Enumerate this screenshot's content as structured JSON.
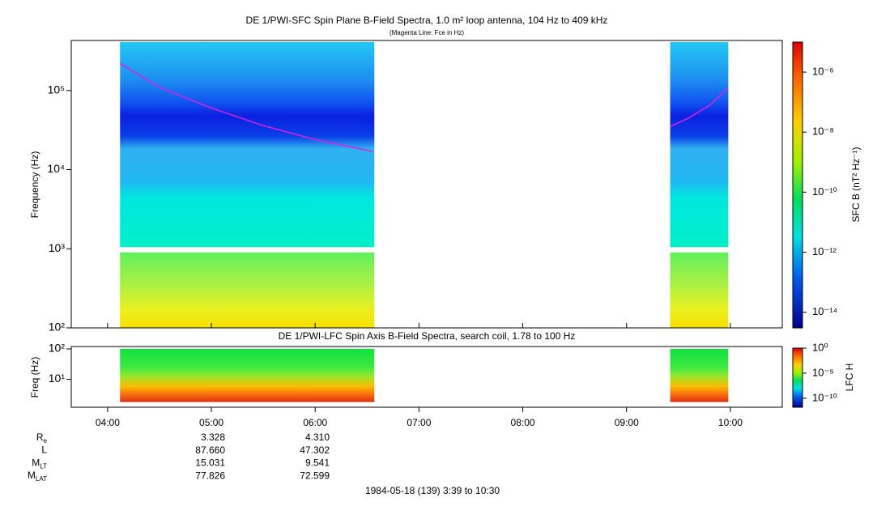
{
  "chart_data": {
    "type": "spectrogram",
    "title": "DE 1/PWI-SFC  Spin Plane B-Field Spectra, 1.0 m² loop antenna, 104 Hz to 409 kHz",
    "subtitle": "(Magenta Line: Fce in Hz)",
    "ylabel": "Frequency (Hz)",
    "xlim": [
      3.65,
      10.5
    ],
    "xticks": [
      {
        "value": 4,
        "label": "04:00"
      },
      {
        "value": 5,
        "label": "05:00"
      },
      {
        "value": 6,
        "label": "06:00"
      },
      {
        "value": 7,
        "label": "07:00"
      },
      {
        "value": 8,
        "label": "08:00"
      },
      {
        "value": 9,
        "label": "09:00"
      },
      {
        "value": 10,
        "label": "10:00"
      }
    ],
    "ylim": [
      100,
      409000
    ],
    "log_y": true,
    "yticks": [
      {
        "value": 100,
        "label": "10²"
      },
      {
        "value": 1000,
        "label": "10³"
      },
      {
        "value": 10000,
        "label": "10⁴"
      },
      {
        "value": 100000,
        "label": "10⁵"
      }
    ],
    "segments": [
      [
        4.12,
        6.57
      ],
      [
        9.42,
        9.98
      ]
    ],
    "bands": [
      [
        100,
        900
      ],
      [
        1050,
        409000
      ]
    ],
    "series": [
      {
        "name": "Fce",
        "color": "#e020e0",
        "x": [
          4.12,
          4.5,
          5.0,
          5.5,
          6.0,
          6.55
        ],
        "values": [
          220000,
          110000,
          60000,
          36000,
          24000,
          17000
        ]
      },
      {
        "name": "Fce",
        "color": "#e020e0",
        "x": [
          9.42,
          9.6,
          9.8,
          9.97
        ],
        "values": [
          35000,
          45000,
          65000,
          105000
        ]
      }
    ],
    "colorbar": {
      "label": "SFC B (nT² Hz⁻¹)",
      "clim": [
        3e-15,
        1e-05
      ],
      "ticks": [
        {
          "value": 1e-06,
          "label": "10⁻⁶"
        },
        {
          "value": 1e-08,
          "label": "10⁻⁸"
        },
        {
          "value": 1e-10,
          "label": "10⁻¹⁰"
        },
        {
          "value": 1e-12,
          "label": "10⁻¹²"
        },
        {
          "value": 1e-14,
          "label": "10⁻¹⁴"
        }
      ]
    },
    "lower": {
      "title": "DE 1/PWI-LFC  Spin Axis B-Field Spectra, search coil, 1.78 to 100 Hz",
      "ylabel": "Freq (Hz)",
      "ylim": [
        1.2,
        120
      ],
      "yticks": [
        {
          "value": 10,
          "label": "10¹"
        },
        {
          "value": 100,
          "label": "10²"
        }
      ],
      "band": [
        1.78,
        100
      ],
      "colorbar": {
        "label": "LFC H",
        "clim": [
          1.6e-12,
          1
        ],
        "ticks": [
          {
            "value": 1,
            "label": "10⁰"
          },
          {
            "value": 1e-05,
            "label": "10⁻⁵"
          },
          {
            "value": 1e-10,
            "label": "10⁻¹⁰"
          }
        ]
      }
    },
    "ephemeris": [
      {
        "label": "R",
        "sub": "e",
        "values": [
          "3.328",
          "4.310"
        ]
      },
      {
        "label": "L",
        "sub": "",
        "values": [
          "87.660",
          "47.302"
        ]
      },
      {
        "label": "M",
        "sub": "LT",
        "values": [
          "15.031",
          "9.541"
        ]
      },
      {
        "label": "M",
        "sub": "LAT",
        "values": [
          "77.826",
          "72.599"
        ]
      }
    ],
    "footer": "1984-05-18 (139) 3:39 to 10:30"
  }
}
